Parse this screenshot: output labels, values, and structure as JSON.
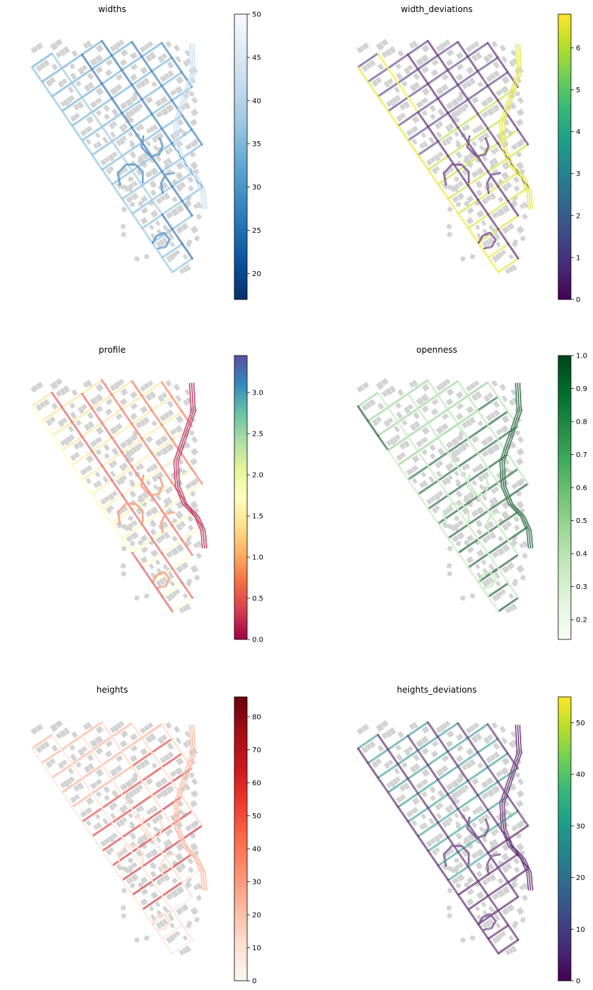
{
  "chart_data": [
    {
      "type": "map",
      "title": "widths",
      "colormap": [
        "#08306b",
        "#08519c",
        "#2171b5",
        "#4292c6",
        "#6baed6",
        "#9ecae1",
        "#c6dbef",
        "#deebf7",
        "#f7fbff"
      ],
      "colorbar": {
        "range": [
          17,
          50
        ],
        "ticks": [
          20,
          25,
          30,
          35,
          40,
          45,
          50
        ]
      }
    },
    {
      "type": "map",
      "title": "width_deviations",
      "colormap": [
        "#440154",
        "#482878",
        "#3e4989",
        "#31688e",
        "#26828e",
        "#1f9e89",
        "#35b779",
        "#6ece58",
        "#b5de2b",
        "#fde725"
      ],
      "colorbar": {
        "range": [
          0,
          6.8
        ],
        "ticks": [
          0,
          1,
          2,
          3,
          4,
          5,
          6
        ]
      }
    },
    {
      "type": "map",
      "title": "profile",
      "colormap": [
        "#9e0142",
        "#d53e4f",
        "#f46d43",
        "#fdae61",
        "#fee08b",
        "#ffffbf",
        "#e6f598",
        "#abdda4",
        "#66c2a5",
        "#3288bd",
        "#5e4fa2"
      ],
      "colorbar": {
        "range": [
          0,
          3.45
        ],
        "ticks": [
          0.0,
          0.5,
          1.0,
          1.5,
          2.0,
          2.5,
          3.0
        ],
        "tick_labels": [
          "0.0",
          "0.5",
          "1.0",
          "1.5",
          "2.0",
          "2.5",
          "3.0"
        ]
      }
    },
    {
      "type": "map",
      "title": "openness",
      "colormap": [
        "#f7fcf5",
        "#e5f5e0",
        "#c7e9c0",
        "#a1d99b",
        "#74c476",
        "#41ab5d",
        "#238b45",
        "#006d2c",
        "#00441b"
      ],
      "colorbar": {
        "range": [
          0.14,
          1.0
        ],
        "ticks": [
          0.2,
          0.3,
          0.4,
          0.5,
          0.6,
          0.7,
          0.8,
          0.9,
          1.0
        ],
        "tick_labels": [
          "0.2",
          "0.3",
          "0.4",
          "0.5",
          "0.6",
          "0.7",
          "0.8",
          "0.9",
          "1.0"
        ]
      }
    },
    {
      "type": "map",
      "title": "heights",
      "colormap": [
        "#fff5f0",
        "#fee0d2",
        "#fcbba1",
        "#fc9272",
        "#fb6a4a",
        "#ef3b2c",
        "#cb181d",
        "#a50f15",
        "#67000d"
      ],
      "colorbar": {
        "range": [
          0,
          86
        ],
        "ticks": [
          0,
          10,
          20,
          30,
          40,
          50,
          60,
          70,
          80
        ]
      }
    },
    {
      "type": "map",
      "title": "heights_deviations",
      "colormap": [
        "#440154",
        "#482878",
        "#3e4989",
        "#31688e",
        "#26828e",
        "#1f9e89",
        "#35b779",
        "#6ece58",
        "#b5de2b",
        "#fde725"
      ],
      "colorbar": {
        "range": [
          0,
          55
        ],
        "ticks": [
          0,
          10,
          20,
          30,
          40,
          50
        ]
      }
    }
  ],
  "style": {
    "building_color": "#d3d3d3",
    "frame_color": "#000000"
  }
}
